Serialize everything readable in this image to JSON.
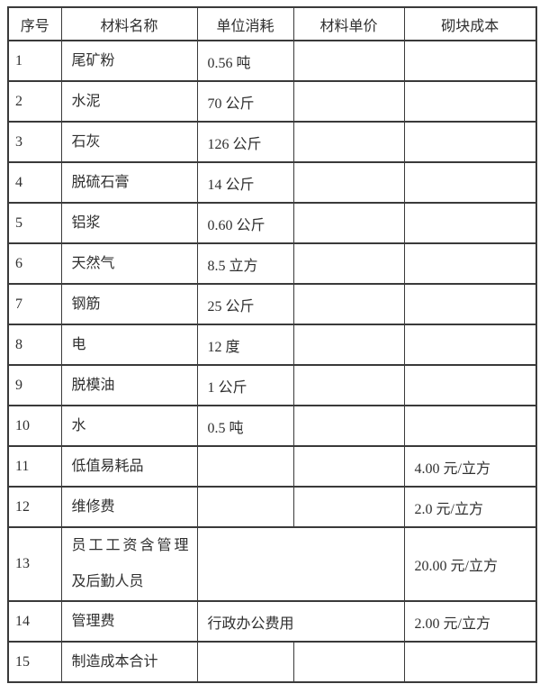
{
  "page": {
    "background": "#ffffff"
  },
  "table": {
    "border_color": "#3a3a3a",
    "text_color": "#2f2f2f",
    "columns": [
      "序号",
      "材料名称",
      "单位消耗",
      "材料单价",
      "砌块成本"
    ],
    "rows": [
      {
        "no": "1",
        "name": "尾矿粉",
        "consumption": "0.56 吨",
        "unit_price": "",
        "cost": ""
      },
      {
        "no": "2",
        "name": "水泥",
        "consumption": "70 公斤",
        "unit_price": "",
        "cost": ""
      },
      {
        "no": "3",
        "name": "石灰",
        "consumption": "126 公斤",
        "unit_price": "",
        "cost": ""
      },
      {
        "no": "4",
        "name": "脱硫石膏",
        "consumption": "14 公斤",
        "unit_price": "",
        "cost": ""
      },
      {
        "no": "5",
        "name": "铝浆",
        "consumption": "0.60 公斤",
        "unit_price": "",
        "cost": ""
      },
      {
        "no": "6",
        "name": "天然气",
        "consumption": "8.5 立方",
        "unit_price": "",
        "cost": ""
      },
      {
        "no": "7",
        "name": "钢筋",
        "consumption": "25 公斤",
        "unit_price": "",
        "cost": ""
      },
      {
        "no": "8",
        "name": "电",
        "consumption": "12 度",
        "unit_price": "",
        "cost": ""
      },
      {
        "no": "9",
        "name": "脱模油",
        "consumption": "1 公斤",
        "unit_price": "",
        "cost": ""
      },
      {
        "no": "10",
        "name": "水",
        "consumption": "0.5 吨",
        "unit_price": "",
        "cost": ""
      },
      {
        "no": "11",
        "name": "低值易耗品",
        "consumption": "",
        "unit_price": "",
        "cost": "4.00 元/立方"
      },
      {
        "no": "12",
        "name": "维修费",
        "consumption": "",
        "unit_price": "",
        "cost": "2.0 元/立方"
      },
      {
        "no": "13",
        "name": "员工工资含管理\n及后勤人员",
        "consumption": "",
        "cost": "20.00 元/立方",
        "merged": true,
        "tall": true
      },
      {
        "no": "14",
        "name": "管理费",
        "consumption": "行政办公费用",
        "cost": "2.00 元/立方",
        "merged": true
      },
      {
        "no": "15",
        "name": "制造成本合计",
        "consumption": "",
        "unit_price": "",
        "cost": ""
      }
    ]
  }
}
